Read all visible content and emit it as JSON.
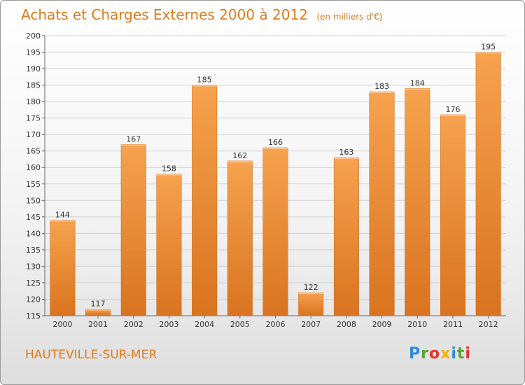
{
  "header": {
    "title": "Achats et Charges Externes 2000 à 2012",
    "unit": "(en milliers d'€)"
  },
  "footer": {
    "commune": "HAUTEVILLE-SUR-MER",
    "logo": "Proxiti"
  },
  "colors": {
    "bar_light": "#f6a24e",
    "bar_dark": "#d9731f",
    "title": "#e07a1d",
    "grid": "#d0d0d0"
  },
  "chart_data": {
    "type": "bar",
    "title": "Achats et Charges Externes 2000 à 2012",
    "subtitle": "(en milliers d'€)",
    "xlabel": "",
    "ylabel": "",
    "categories": [
      "2000",
      "2001",
      "2002",
      "2003",
      "2004",
      "2005",
      "2006",
      "2007",
      "2008",
      "2009",
      "2010",
      "2011",
      "2012"
    ],
    "values": [
      144,
      117,
      167,
      158,
      185,
      162,
      166,
      122,
      163,
      183,
      184,
      176,
      195
    ],
    "ylim": [
      115,
      200
    ],
    "yticks": [
      115,
      120,
      125,
      130,
      135,
      140,
      145,
      150,
      155,
      160,
      165,
      170,
      175,
      180,
      185,
      190,
      195,
      200
    ],
    "grid": true,
    "legend": "none"
  }
}
